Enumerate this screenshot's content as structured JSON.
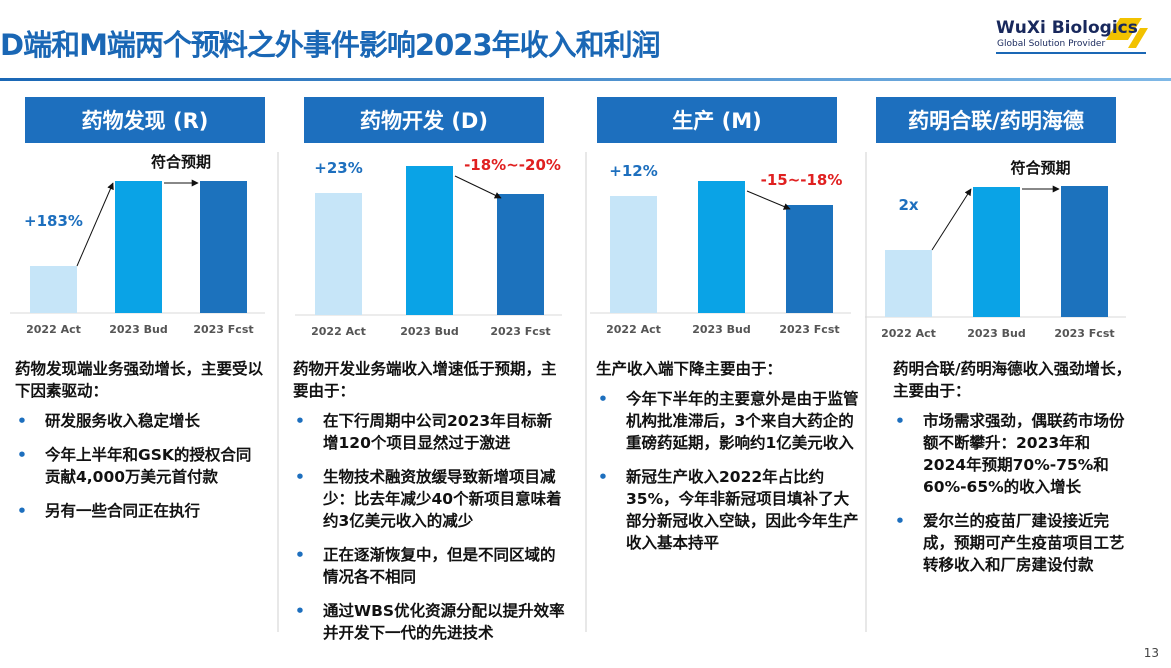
{
  "title": "D端和M端两个预料之外事件影响2023年收入和利润",
  "logo": {
    "name": "WuXi Biologics",
    "tagline": "Global Solution Provider"
  },
  "page_number": "13",
  "panels": [
    {
      "header": "药物发现 (R)",
      "chart": {
        "type": "bar",
        "categories": [
          "2022 Act",
          "2023 Bud",
          "2023 Fcst"
        ],
        "values": [
          47,
          132,
          132
        ],
        "colors": [
          "#c6e5f8",
          "#0aa3e6",
          "#1c72bd"
        ],
        "ylim": [
          0,
          160
        ],
        "annotations": [
          {
            "text": "+183%",
            "color": "#1d6fbe"
          },
          {
            "text": "符合预期",
            "color": "#111111"
          }
        ]
      },
      "intro": "药物发现端业务强劲增长，主要受以下因素驱动：",
      "bullets": [
        "研发服务收入稳定增长",
        "今年上半年和GSK的授权合同贡献4,000万美元首付款",
        "另有一些合同正在执行"
      ]
    },
    {
      "header": "药物开发 (D)",
      "chart": {
        "type": "bar",
        "categories": [
          "2022 Act",
          "2023 Bud",
          "2023 Fcst"
        ],
        "values": [
          122,
          149,
          121
        ],
        "colors": [
          "#c6e5f8",
          "#0aa3e6",
          "#1c72bd"
        ],
        "ylim": [
          0,
          160
        ],
        "annotations": [
          {
            "text": "+23%",
            "color": "#1d6fbe"
          },
          {
            "text": "-18%~-20%",
            "color": "#e02020"
          }
        ]
      },
      "intro": "药物开发业务端收入增速低于预期，主要由于：",
      "bullets": [
        "在下行周期中公司2023年目标新增120个项目显然过于激进",
        "生物技术融资放缓导致新增项目减少：比去年减少40个新项目意味着约3亿美元收入的减少",
        "正在逐渐恢复中，但是不同区域的情况各不相同",
        "通过WBS优化资源分配以提升效率并开发下一代的先进技术"
      ]
    },
    {
      "header": "生产 (M)",
      "chart": {
        "type": "bar",
        "categories": [
          "2022 Act",
          "2023 Bud",
          "2023 Fcst"
        ],
        "values": [
          117,
          132,
          108
        ],
        "colors": [
          "#c6e5f8",
          "#0aa3e6",
          "#1c72bd"
        ],
        "ylim": [
          0,
          160
        ],
        "annotations": [
          {
            "text": "+12%",
            "color": "#1d6fbe"
          },
          {
            "text": "-15~-18%",
            "color": "#e02020"
          }
        ]
      },
      "intro": "生产收入端下降主要由于：",
      "bullets": [
        "今年下半年的主要意外是由于监管机构批准滞后，3个来自大药企的重磅药延期，影响约1亿美元收入",
        "新冠生产收入2022年占比约35%，今年非新冠项目填补了大部分新冠收入空缺，因此今年生产收入基本持平"
      ]
    },
    {
      "header": "药明合联/药明海德",
      "chart": {
        "type": "bar",
        "categories": [
          "2022 Act",
          "2023 Bud",
          "2023 Fcst"
        ],
        "values": [
          67,
          130,
          131
        ],
        "colors": [
          "#c6e5f8",
          "#0aa3e6",
          "#1c72bd"
        ],
        "ylim": [
          0,
          160
        ],
        "annotations": [
          {
            "text": "2x",
            "color": "#1d6fbe"
          },
          {
            "text": "符合预期",
            "color": "#111111"
          }
        ]
      },
      "intro": "药明合联/药明海德收入强劲增长，主要由于：",
      "bullets": [
        "市场需求强劲，偶联药市场份额不断攀升：2023年和2024年预期70%-75%和60%-65%的收入增长",
        "爱尔兰的疫苗厂建设接近完成，预期可产生疫苗项目工艺转移收入和厂房建设付款"
      ]
    }
  ]
}
